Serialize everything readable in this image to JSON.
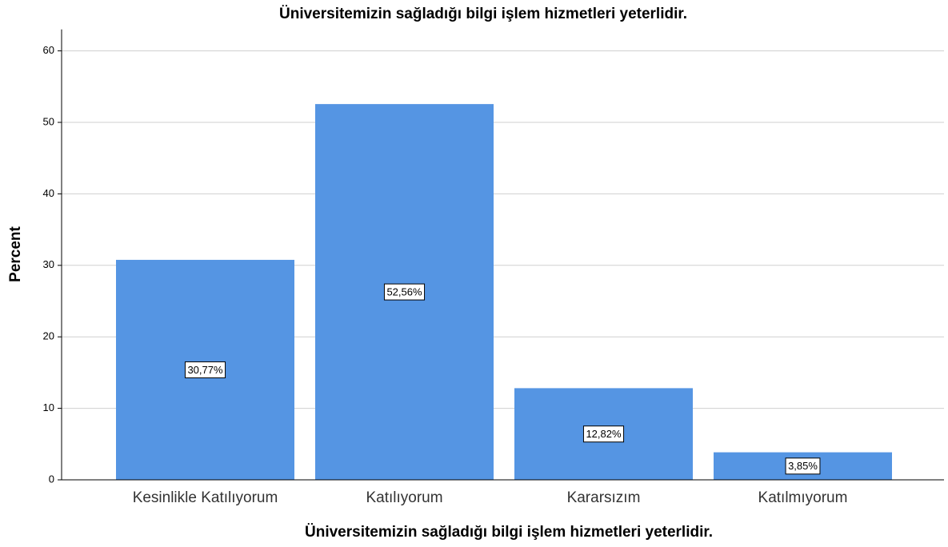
{
  "chart_data": {
    "type": "bar",
    "title": "Üniversitemizin sağladığı bilgi işlem hizmetleri yeterlidir.",
    "xlabel": "Üniversitemizin sağladığı bilgi işlem hizmetleri yeterlidir.",
    "ylabel": "Percent",
    "categories": [
      "Kesinlikle Katılıyorum",
      "Katılıyorum",
      "Kararsızım",
      "Katılmıyorum"
    ],
    "values": [
      30.77,
      52.56,
      12.82,
      3.85
    ],
    "value_labels": [
      "30,77%",
      "52,56%",
      "12,82%",
      "3,85%"
    ],
    "color": "#5595e3",
    "ylim": [
      0,
      63
    ],
    "yticks": [
      0,
      10,
      20,
      30,
      40,
      50,
      60
    ],
    "grid": true
  }
}
